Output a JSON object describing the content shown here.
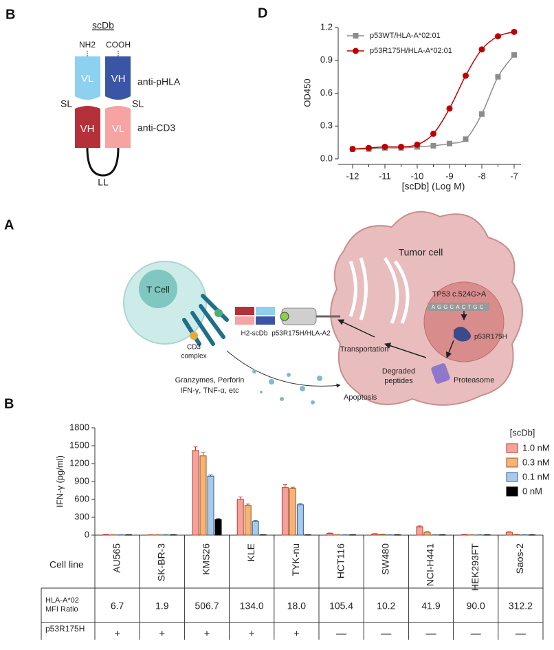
{
  "panel_labels": [
    "B",
    "D",
    "A",
    "B"
  ],
  "scdb": {
    "title": "scDb",
    "nh2": "NH2",
    "cooh": "COOH",
    "vl_top": "VL",
    "vh_top": "VH",
    "vh_bottom": "VH",
    "vl_bottom": "VL",
    "anti_phla": "anti-pHLA",
    "anti_cd3": "anti-CD3",
    "sl_left": "SL",
    "sl_right": "SL",
    "ll": "LL"
  },
  "mechanism": {
    "tumor": "Tumor cell",
    "tcell": "T Cell",
    "cd3": [
      "CD3",
      "complex"
    ],
    "scdb": "H2-scDb",
    "phla": "p53R175H/HLA-A2",
    "tp53": "TP53 c.524G>A",
    "sequence": "AGGCACTGC",
    "p53": "p53R175H",
    "transport": "Transportation",
    "degraded": [
      "Degraded",
      "peptides"
    ],
    "proteasome": "Proteasome",
    "granzymes": "Granzymes, Perforin",
    "cytokines": "IFN-γ, TNF-α, etc",
    "apoptosis": "Apoptosis"
  },
  "chart_data": [
    {
      "type": "line",
      "xlabel": "[scDb] (Log M)",
      "ylabel": "OD450",
      "x": [
        -12,
        -11.5,
        -11,
        -10.5,
        -10,
        -9.5,
        -9,
        -8.5,
        -8,
        -7.5,
        -7
      ],
      "xlim": [
        -12,
        -7
      ],
      "xticks": [
        -12,
        -11,
        -10,
        -9,
        -8,
        -7
      ],
      "ylim": [
        0,
        1.2
      ],
      "yticks": [
        {
          "value": 0,
          "label": "0.0"
        },
        0.3,
        0.6,
        0.9,
        1.2
      ],
      "series": [
        {
          "name": "p53WT/HLA-A*02:01",
          "color": "#8c8c8c",
          "marker": "square",
          "values": [
            0.09,
            0.09,
            0.1,
            0.1,
            0.11,
            0.12,
            0.14,
            0.18,
            0.41,
            0.75,
            0.95
          ]
        },
        {
          "name": "p53R175H/HLA-A*02:01",
          "color": "#c00000",
          "marker": "circle",
          "values": [
            0.09,
            0.1,
            0.11,
            0.11,
            0.13,
            0.23,
            0.46,
            0.76,
            1.0,
            1.12,
            1.16
          ]
        }
      ]
    },
    {
      "type": "bar",
      "ylabel": "IFN-γ (pg/ml)",
      "legend_title": "[scDb]",
      "categories": [
        "AU565",
        "SK-BR-3",
        "KMS26",
        "KLE",
        "TYK-nu",
        "HCT116",
        "SW480",
        "NCI-H441",
        "HEK293FT",
        "Saos-2"
      ],
      "ylim": [
        0,
        1800
      ],
      "yticks": [
        0,
        300,
        600,
        900,
        1200,
        1500,
        1800
      ],
      "series": [
        {
          "name": "1.0 nM",
          "color": "#f4a39c",
          "edge": "#c0392b",
          "values": [
            10,
            5,
            1420,
            600,
            800,
            30,
            20,
            140,
            10,
            50
          ],
          "errors": [
            3,
            2,
            60,
            40,
            45,
            5,
            4,
            15,
            3,
            6
          ]
        },
        {
          "name": "0.3 nM",
          "color": "#f2b577",
          "edge": "#a0561a",
          "values": [
            5,
            5,
            1330,
            500,
            780,
            5,
            15,
            50,
            5,
            10
          ],
          "errors": [
            2,
            2,
            55,
            20,
            25,
            2,
            3,
            8,
            2,
            3
          ]
        },
        {
          "name": "0.1 nM",
          "color": "#a9c9ea",
          "edge": "#2e5f95",
          "values": [
            5,
            5,
            990,
            230,
            510,
            5,
            5,
            5,
            5,
            5
          ],
          "errors": [
            2,
            2,
            20,
            15,
            20,
            2,
            2,
            2,
            2,
            2
          ]
        },
        {
          "name": "0 nM",
          "color": "#000000",
          "edge": "#000000",
          "values": [
            5,
            5,
            260,
            5,
            5,
            5,
            5,
            5,
            5,
            5
          ],
          "errors": [
            2,
            2,
            15,
            2,
            2,
            2,
            2,
            2,
            2,
            2
          ]
        }
      ]
    }
  ],
  "table": {
    "row_labels": [
      "Cell line",
      "HLA-A*02",
      "MFI Ratio",
      "p53R175H"
    ],
    "mfi": [
      "6.7",
      "1.9",
      "506.7",
      "134.0",
      "18.0",
      "105.4",
      "10.2",
      "41.9",
      "90.0",
      "312.2"
    ],
    "p53": [
      "+",
      "+",
      "+",
      "+",
      "+",
      "—",
      "—",
      "—",
      "—",
      "—"
    ]
  }
}
